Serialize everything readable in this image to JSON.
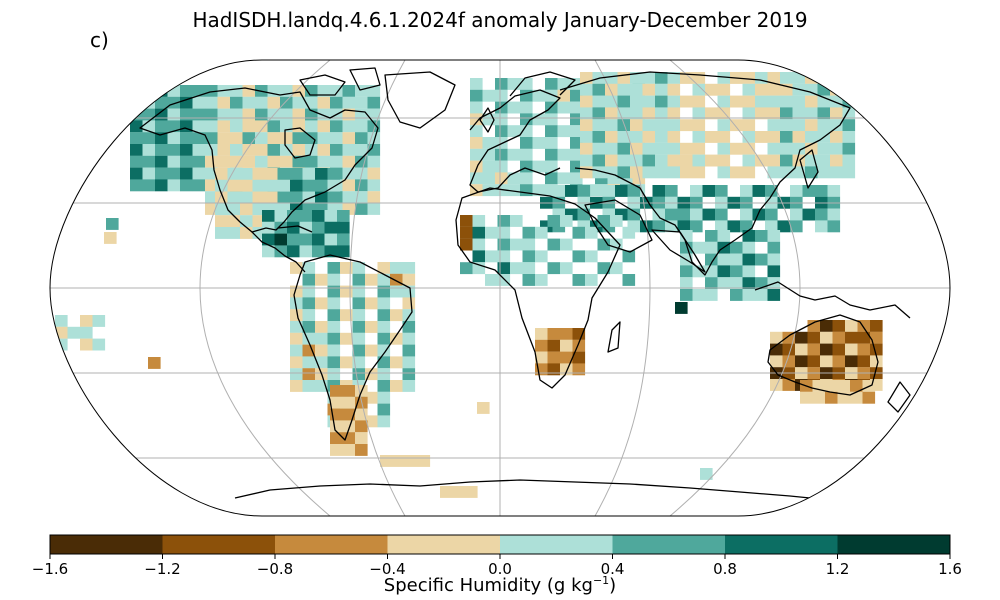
{
  "title": "HadISDH.landq.4.6.1.2024f anomaly January-December 2019",
  "panel_label": "c)",
  "colorbar": {
    "label_text": "Specific Humidity (g kg",
    "label_exp": "−1",
    "label_close": ")",
    "ticks": [
      "−1.6",
      "−1.2",
      "−0.8",
      "−0.4",
      "0.0",
      "0.4",
      "0.8",
      "1.2",
      "1.6"
    ],
    "colors": [
      "#4a2c06",
      "#8c510a",
      "#c68a3d",
      "#ecd6a6",
      "#ade0d8",
      "#4fa89c",
      "#0c6e63",
      "#003b30"
    ]
  },
  "map": {
    "projection": "Robinson",
    "graticule_lat": [
      -60,
      -30,
      0,
      30,
      60
    ],
    "graticule_lon": [
      -120,
      -60,
      0,
      60,
      120
    ]
  }
}
